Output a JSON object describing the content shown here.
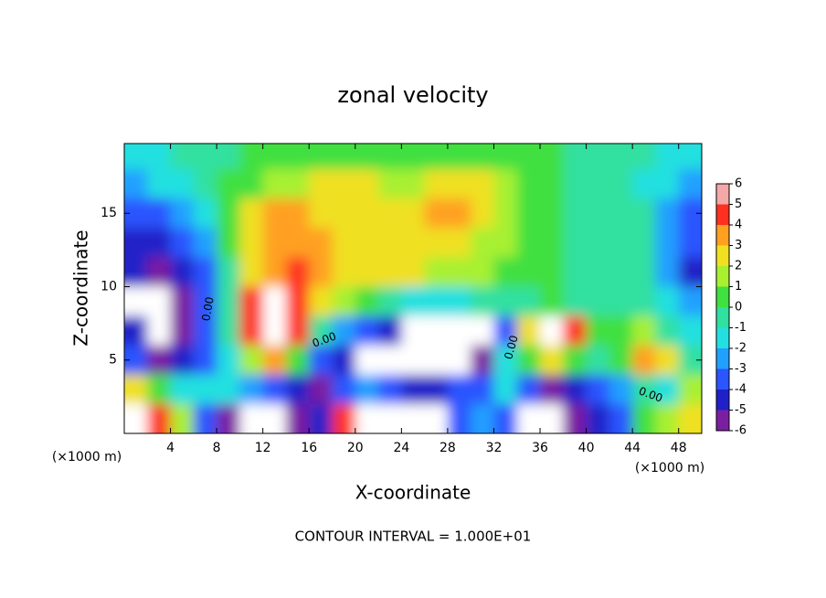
{
  "chart_data": {
    "type": "heatmap",
    "title": "zonal velocity",
    "xlabel": "X-coordinate",
    "ylabel": "Z-coordinate",
    "x_unit": "(×1000 m)",
    "y_unit": "(×1000 m)",
    "footer": "CONTOUR INTERVAL = 1.000E+01",
    "contour_label": "0.00",
    "xlim": [
      0,
      50
    ],
    "ylim": [
      0,
      19.75
    ],
    "xticks": [
      4,
      8,
      12,
      16,
      20,
      24,
      28,
      32,
      36,
      40,
      44,
      48
    ],
    "yticks": [
      5,
      10,
      15
    ],
    "x": [
      1,
      3,
      5,
      7,
      9,
      11,
      13,
      15,
      17,
      19,
      21,
      23,
      25,
      27,
      29,
      31,
      33,
      35,
      37,
      39,
      41,
      43,
      45,
      47,
      49
    ],
    "y": [
      19,
      17,
      15,
      13,
      11,
      9,
      7,
      5,
      3,
      1
    ],
    "z": [
      [
        -1,
        -1,
        0,
        0,
        0,
        0.5,
        1,
        1,
        1,
        1,
        1,
        1,
        1,
        1,
        1,
        1,
        0.5,
        0.5,
        0.5,
        0,
        0,
        0,
        -0.5,
        -1,
        -1
      ],
      [
        -2,
        -1.5,
        -1,
        0,
        0.5,
        1,
        2,
        2,
        2.5,
        2.5,
        2.5,
        2,
        2,
        2.5,
        3,
        3,
        2,
        1,
        0.5,
        0,
        0,
        -0.5,
        -1,
        -1.5,
        -2
      ],
      [
        -3,
        -3,
        -2,
        -1,
        1,
        3,
        3.5,
        3.5,
        3,
        3,
        3,
        3,
        3,
        3.5,
        3.5,
        3,
        2,
        1,
        0.5,
        0,
        0,
        0,
        -0.5,
        -2,
        -3
      ],
      [
        -4,
        -4,
        -3,
        -2,
        0.5,
        3,
        4,
        4,
        3.5,
        3,
        3,
        3,
        3,
        3,
        2.5,
        2,
        1.5,
        1,
        0.5,
        0,
        0,
        0,
        -0.5,
        -2,
        -3
      ],
      [
        -4,
        -5,
        -4,
        -3,
        0,
        3,
        4,
        4.5,
        4,
        3,
        3,
        2.5,
        2.5,
        2,
        2,
        1.5,
        1,
        1,
        0.5,
        0,
        0,
        0,
        -0.5,
        -2,
        -4
      ],
      [
        -10,
        -10,
        -5,
        -3,
        0,
        5,
        10,
        5,
        3,
        2,
        1,
        0,
        -1,
        -1,
        -1,
        -0.5,
        0,
        0,
        0.5,
        0,
        0,
        0,
        0,
        -1,
        -2
      ],
      [
        -4,
        -10,
        -5,
        -3,
        0,
        5,
        10,
        5,
        0,
        -2,
        -3,
        -4,
        -10,
        -10,
        -10,
        -10,
        -3,
        3,
        10,
        5,
        1,
        1,
        2,
        0,
        -1
      ],
      [
        -3,
        -5,
        -4,
        -3,
        -1,
        2,
        4,
        1,
        -3,
        -4,
        -10,
        -10,
        -10,
        -10,
        -10,
        -5,
        -1,
        0.5,
        3,
        1,
        0,
        0.5,
        4,
        3,
        0
      ],
      [
        3,
        1,
        -1,
        -1,
        -1,
        -2,
        -3,
        -4,
        -5,
        -3,
        -2,
        -3,
        -4,
        -4,
        -3,
        -3,
        -1,
        -3,
        -5,
        -4,
        -3,
        -2,
        0,
        -1,
        2
      ],
      [
        10,
        5,
        2,
        -3,
        -5,
        -10,
        -10,
        -5,
        -4,
        5,
        10,
        10,
        10,
        10,
        -3,
        -2,
        -3,
        -10,
        -10,
        -5,
        -4,
        -3,
        1,
        2,
        3
      ]
    ],
    "colorbar_ticks": [
      -6,
      -5,
      -4,
      -3,
      -2,
      -1,
      0,
      1,
      2,
      3,
      4,
      5,
      6
    ],
    "colors": [
      "#7b1fa2",
      "#2020c8",
      "#2a55ff",
      "#22a0ff",
      "#22e0e0",
      "#30e0a0",
      "#40e040",
      "#a8f030",
      "#f0e020",
      "#ffa020",
      "#ff3020",
      "#f4a8a8"
    ],
    "out_of_range_color": "#ffffff"
  }
}
